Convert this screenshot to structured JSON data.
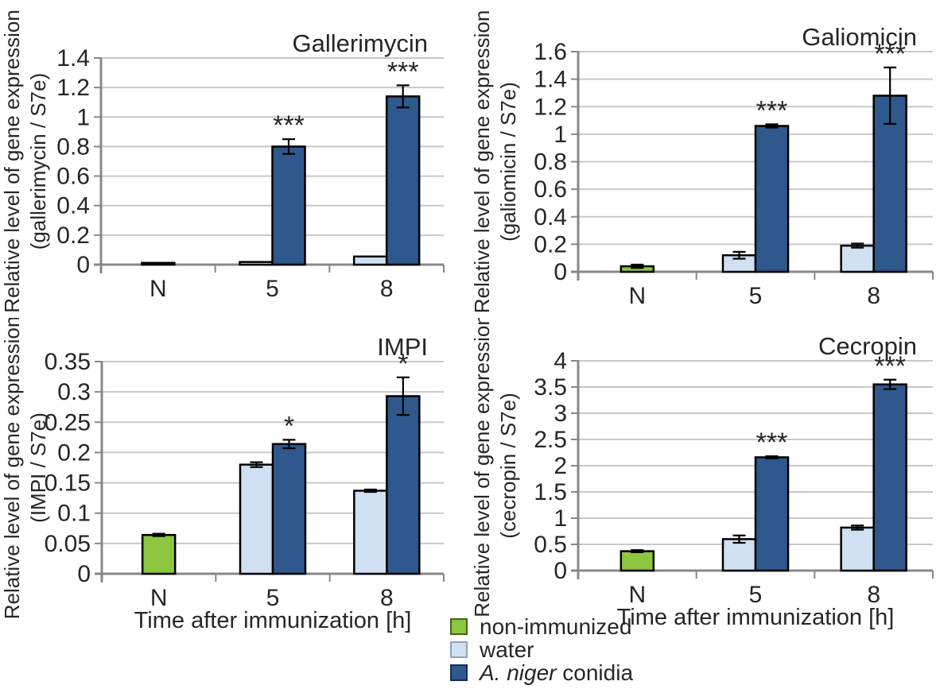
{
  "figure": {
    "background": "#ffffff"
  },
  "colors": {
    "non_immunized_green": "#8DC63F",
    "water_light_blue": "#CFE0F2",
    "conidia_dark_blue": "#2F588C",
    "gridline": "#C8C8C8",
    "axis": "#888888",
    "bar_outline": "#000000",
    "text": "#262626"
  },
  "legend": {
    "items": [
      {
        "italic": "",
        "label": "non-immunized",
        "color": "#8DC63F",
        "border": "#44631a"
      },
      {
        "italic": "",
        "label": "water",
        "color": "#CFE0F2",
        "border": "#8fa3b8"
      },
      {
        "italic": "A. niger",
        "label": " conidia",
        "color": "#2F588C",
        "border": "#122f52"
      }
    ]
  },
  "chart_data": [
    {
      "type": "bar",
      "title": "Gallerimycin",
      "ylabel_line1": "Relative level of gene expression",
      "ylabel_line2": "(gallerimycin / S7e)",
      "xlabel": "",
      "categories": [
        "N",
        "5",
        "8"
      ],
      "ylim": [
        0,
        1.4
      ],
      "ytick_labels": [
        "0",
        "0.2",
        "0.4",
        "0.6",
        "0.8",
        "1",
        "1.2",
        "1.4"
      ],
      "grid": true,
      "series": [
        {
          "name": "non-immunized",
          "color": "#8DC63F",
          "values": [
            0.012,
            0,
            0
          ],
          "errors": [
            0,
            0,
            0
          ],
          "sig": [
            "",
            "",
            ""
          ]
        },
        {
          "name": "water",
          "color": "#CFE0F2",
          "values": [
            0,
            0.018,
            0.055
          ],
          "errors": [
            0,
            0,
            0
          ],
          "sig": [
            "",
            "",
            ""
          ]
        },
        {
          "name": "A. niger conidia",
          "color": "#2F588C",
          "values": [
            0,
            0.8,
            1.14
          ],
          "errors": [
            0,
            0.05,
            0.075
          ],
          "sig": [
            "",
            "***",
            "***"
          ]
        }
      ]
    },
    {
      "type": "bar",
      "title": "Galiomicin",
      "ylabel_line1": "Relative level of gene expression",
      "ylabel_line2": "(galiomicin / S7e)",
      "xlabel": "",
      "categories": [
        "N",
        "5",
        "8"
      ],
      "ylim": [
        0,
        1.6
      ],
      "ytick_labels": [
        "0",
        "0.2",
        "0.4",
        "0.6",
        "0.8",
        "1",
        "1.2",
        "1.4",
        "1.6"
      ],
      "grid": true,
      "series": [
        {
          "name": "non-immunized",
          "color": "#8DC63F",
          "values": [
            0.04,
            0,
            0
          ],
          "errors": [
            0.012,
            0,
            0
          ],
          "sig": [
            "",
            "",
            ""
          ]
        },
        {
          "name": "water",
          "color": "#CFE0F2",
          "values": [
            0,
            0.12,
            0.19
          ],
          "errors": [
            0,
            0.025,
            0.015
          ],
          "sig": [
            "",
            "",
            ""
          ]
        },
        {
          "name": "A. niger conidia",
          "color": "#2F588C",
          "values": [
            0,
            1.06,
            1.28
          ],
          "errors": [
            0,
            0.012,
            0.205
          ],
          "sig": [
            "",
            "***",
            "***"
          ]
        }
      ]
    },
    {
      "type": "bar",
      "title": "IMPI",
      "ylabel_line1": "Relative level of gene expression",
      "ylabel_line2": "(IMPI / S7e)",
      "xlabel": "Time after immunization [h]",
      "categories": [
        "N",
        "5",
        "8"
      ],
      "ylim": [
        0,
        0.35
      ],
      "ytick_labels": [
        "0",
        "0.05",
        "0.1",
        "0.15",
        "0.2",
        "0.25",
        "0.3",
        "0.35"
      ],
      "grid": true,
      "series": [
        {
          "name": "non-immunized",
          "color": "#8DC63F",
          "values": [
            0.064,
            0,
            0
          ],
          "errors": [
            0.002,
            0,
            0
          ],
          "sig": [
            "",
            "",
            ""
          ]
        },
        {
          "name": "water",
          "color": "#CFE0F2",
          "values": [
            0,
            0.18,
            0.137
          ],
          "errors": [
            0,
            0.004,
            0.002
          ],
          "sig": [
            "",
            "",
            ""
          ]
        },
        {
          "name": "A. niger conidia",
          "color": "#2F588C",
          "values": [
            0,
            0.214,
            0.293
          ],
          "errors": [
            0,
            0.007,
            0.031
          ],
          "sig": [
            "",
            "*",
            "*"
          ]
        }
      ]
    },
    {
      "type": "bar",
      "title": "Cecropin",
      "ylabel_line1": "Relative level of gene expression",
      "ylabel_line2": "(cecropin / S7e)",
      "xlabel": "Time after immunization [h]",
      "categories": [
        "N",
        "5",
        "8"
      ],
      "ylim": [
        0,
        4
      ],
      "ytick_labels": [
        "0",
        "0.5",
        "1",
        "1.5",
        "2",
        "2.5",
        "3",
        "3.5",
        "4"
      ],
      "grid": true,
      "series": [
        {
          "name": "non-immunized",
          "color": "#8DC63F",
          "values": [
            0.37,
            0,
            0
          ],
          "errors": [
            0.02,
            0,
            0
          ],
          "sig": [
            "",
            "",
            ""
          ]
        },
        {
          "name": "water",
          "color": "#CFE0F2",
          "values": [
            0,
            0.6,
            0.82
          ],
          "errors": [
            0,
            0.07,
            0.04
          ],
          "sig": [
            "",
            "",
            ""
          ]
        },
        {
          "name": "A. niger conidia",
          "color": "#2F588C",
          "values": [
            0,
            2.16,
            3.55
          ],
          "errors": [
            0,
            0.02,
            0.09
          ],
          "sig": [
            "",
            "***",
            "***"
          ]
        }
      ]
    }
  ]
}
